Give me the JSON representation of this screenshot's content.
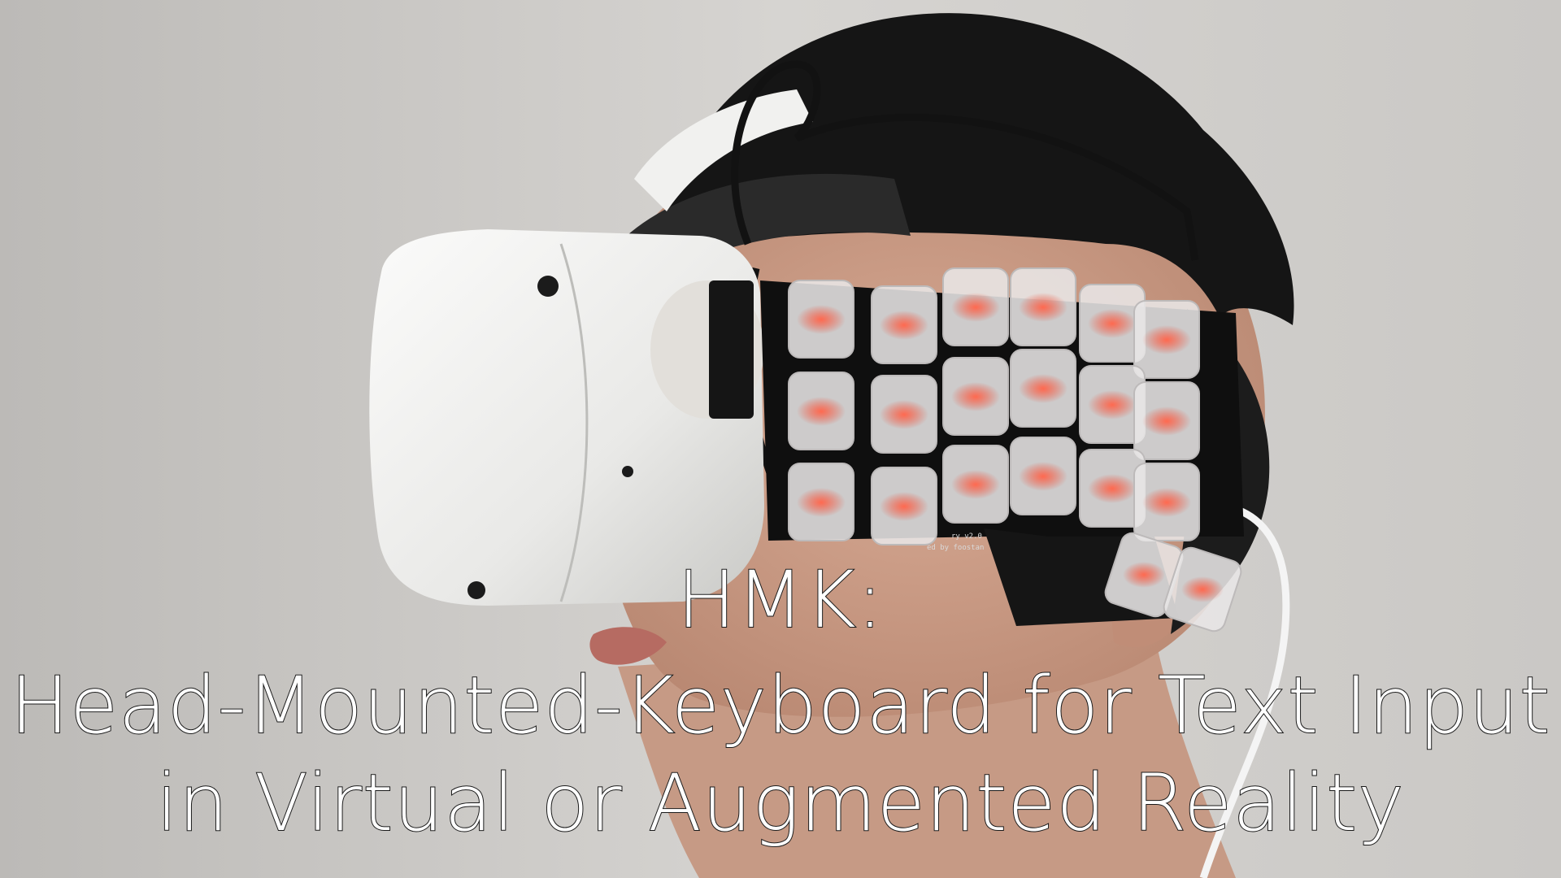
{
  "caption": {
    "line1": "HMK:",
    "line2": "Head-Mounted-Keyboard for Text Input",
    "line3": "in Virtual or Augmented Reality"
  },
  "keyboard": {
    "pcb_label_1": "ry v2.0",
    "pcb_label_2": "ed by foostan"
  },
  "colors": {
    "background": "#cfcdc9",
    "headset": "#eeeeec",
    "hair": "#141414",
    "keycap": "#e8e6e6",
    "key_led": "#e8503c",
    "caption_text": "#ffffff",
    "caption_outline": "#1a1a1a"
  }
}
